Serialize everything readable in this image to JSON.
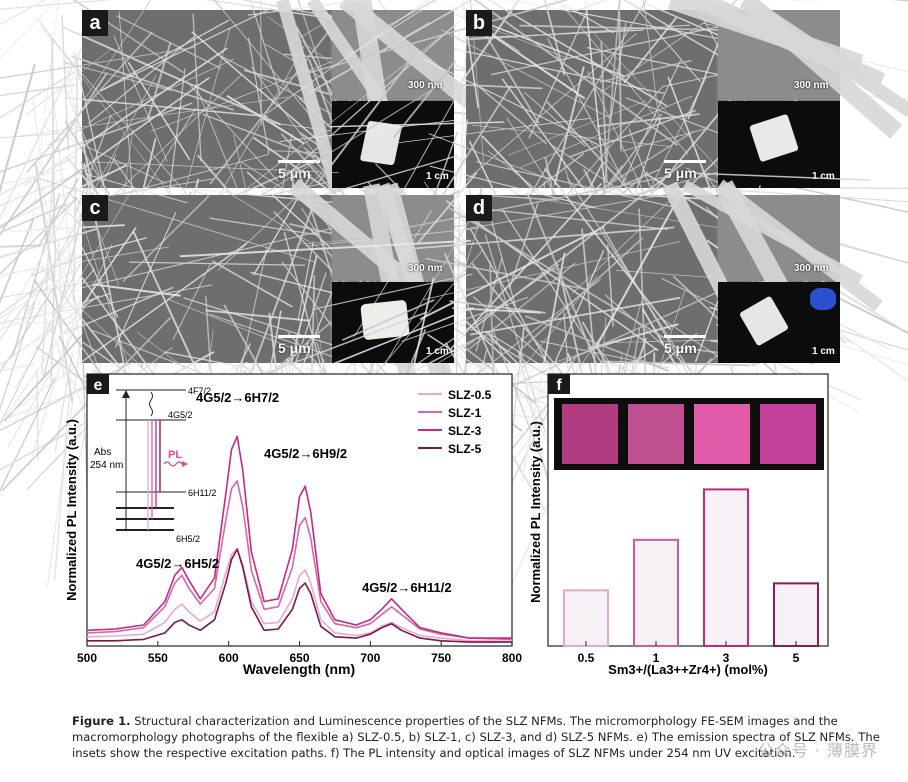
{
  "panels": [
    {
      "label": "a",
      "scale_main": "5 μm",
      "scale_inset": "300 nm",
      "scale_photo": "1 cm"
    },
    {
      "label": "b",
      "scale_main": "5 μm",
      "scale_inset": "300 nm",
      "scale_photo": "1 cm"
    },
    {
      "label": "c",
      "scale_main": "5 μm",
      "scale_inset": "300 nm",
      "scale_photo": "1 cm"
    },
    {
      "label": "d",
      "scale_main": "5 μm",
      "scale_inset": "300 nm",
      "scale_photo": "1 cm"
    }
  ],
  "chart_data": [
    {
      "type": "line",
      "label": "e",
      "xlabel": "Wavelength (nm)",
      "ylabel": "Normalized PL Intensity (a.u.)",
      "xlim": [
        500,
        800
      ],
      "xticks": [
        500,
        550,
        600,
        650,
        700,
        750,
        800
      ],
      "legend_position": "top-right",
      "colors": [
        "#e9a8cf",
        "#d865a8",
        "#c42a83",
        "#7a1849"
      ],
      "x": [
        500,
        520,
        540,
        555,
        562,
        567,
        572,
        580,
        590,
        598,
        602,
        606,
        610,
        616,
        625,
        635,
        645,
        650,
        654,
        658,
        665,
        675,
        690,
        700,
        708,
        715,
        722,
        735,
        750,
        770,
        800
      ],
      "series": [
        {
          "name": "SLZ-0.5",
          "values": [
            0.035,
            0.038,
            0.045,
            0.09,
            0.14,
            0.16,
            0.13,
            0.095,
            0.13,
            0.28,
            0.35,
            0.37,
            0.31,
            0.17,
            0.085,
            0.09,
            0.18,
            0.27,
            0.29,
            0.24,
            0.1,
            0.05,
            0.04,
            0.05,
            0.075,
            0.09,
            0.07,
            0.04,
            0.03,
            0.02,
            0.018
          ]
        },
        {
          "name": "SLZ-1",
          "values": [
            0.05,
            0.055,
            0.07,
            0.15,
            0.24,
            0.27,
            0.22,
            0.16,
            0.22,
            0.48,
            0.6,
            0.63,
            0.53,
            0.29,
            0.14,
            0.15,
            0.3,
            0.46,
            0.49,
            0.41,
            0.17,
            0.085,
            0.07,
            0.085,
            0.12,
            0.15,
            0.12,
            0.065,
            0.045,
            0.03,
            0.025
          ]
        },
        {
          "name": "SLZ-3",
          "values": [
            0.06,
            0.065,
            0.08,
            0.17,
            0.27,
            0.3,
            0.25,
            0.18,
            0.26,
            0.58,
            0.75,
            0.8,
            0.67,
            0.36,
            0.17,
            0.18,
            0.37,
            0.57,
            0.61,
            0.51,
            0.2,
            0.1,
            0.08,
            0.1,
            0.14,
            0.18,
            0.14,
            0.07,
            0.05,
            0.03,
            0.03
          ]
        },
        {
          "name": "SLZ-5",
          "values": [
            0.02,
            0.02,
            0.025,
            0.05,
            0.09,
            0.1,
            0.08,
            0.06,
            0.1,
            0.24,
            0.33,
            0.37,
            0.3,
            0.15,
            0.06,
            0.065,
            0.14,
            0.22,
            0.24,
            0.2,
            0.075,
            0.035,
            0.03,
            0.045,
            0.07,
            0.085,
            0.06,
            0.03,
            0.02,
            0.015,
            0.015
          ]
        }
      ],
      "annotations": {
        "peak1_main": "4G5/2",
        "peak1_arrow": "→",
        "peak1_target": "6H5/2",
        "peak2_main": "4G5/2",
        "peak2_arrow": "→",
        "peak2_target": "6H7/2",
        "peak3_main": "4G5/2",
        "peak3_arrow": "→",
        "peak3_target": "6H9/2",
        "peak4_main": "4G5/2",
        "peak4_arrow": "→",
        "peak4_target": "6H11/2"
      },
      "energy_diagram": {
        "abs_label": "Abs",
        "abs_wl": "254 nm",
        "pl_label": "PL",
        "levels": [
          "4F7/2",
          "4G5/2",
          "6H11/2",
          "6H5/2"
        ]
      }
    },
    {
      "type": "bar",
      "label": "f",
      "categories": [
        "0.5",
        "1",
        "3",
        "5"
      ],
      "values": [
        0.32,
        0.61,
        0.9,
        0.36
      ],
      "xlabel": "Sm3+/(La3++Zr4+) (mol%)",
      "ylabel": "Normalized PL Intensity (a.u.)",
      "colors": [
        "#e6a9cc",
        "#d45a9f",
        "#c2297d",
        "#8a1d55"
      ],
      "photo_colors": [
        "#b13c7f",
        "#c05090",
        "#e25ba8",
        "#c2409a"
      ]
    }
  ],
  "caption": {
    "fig_label": "Figure 1.",
    "text": "Structural characterization and Luminescence properties of the SLZ NFMs. The micromorphology FE-SEM images and the macromorphology photographs of the flexible a) SLZ-0.5, b) SLZ-1, c) SLZ-3, and d) SLZ-5 NFMs. e) The emission spectra of SLZ NFMs. The insets show the respective excitation paths. f) The PL intensity and optical images of SLZ NFMs under 254 nm UV excitation."
  },
  "watermark": "公众号 · 薄膜界"
}
